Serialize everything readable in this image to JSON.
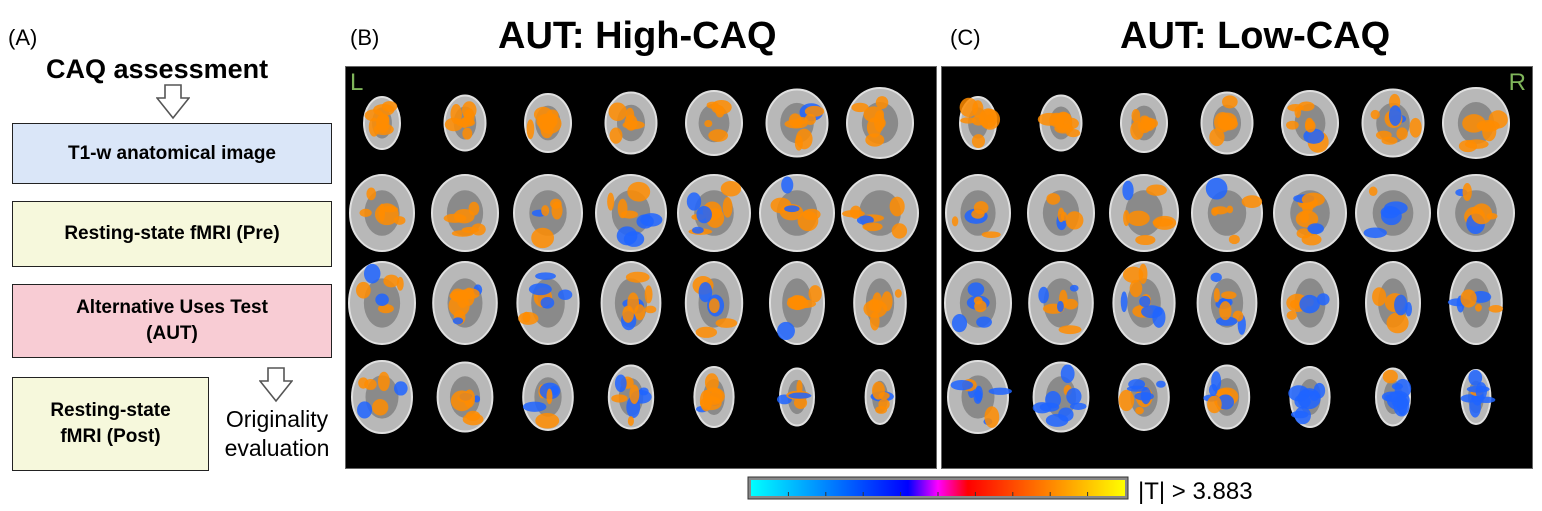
{
  "panel_a": {
    "letter": "(A)",
    "title": "CAQ assessment",
    "box1": "T1-w anatomical image",
    "box2": "Resting-state fMRI (Pre)",
    "box3_line1": "Alternative Uses Test",
    "box3_line2": "(AUT)",
    "box4_line1": "Resting-state",
    "box4_line2": "fMRI (Post)",
    "side_line1": "Originality",
    "side_line2": "evaluation"
  },
  "panel_b": {
    "letter": "(B)",
    "title": "AUT: High-CAQ",
    "corner_label": "L"
  },
  "panel_c": {
    "letter": "(C)",
    "title": "AUT: Low-CAQ",
    "corner_label": "R"
  },
  "colorbar": {
    "label": "|T| > 3.883",
    "colors": [
      "#00ffff",
      "#0000ff",
      "#ff00ff",
      "#ff0000",
      "#ffff00"
    ]
  },
  "colors": {
    "blue_box": "#dae6f8",
    "yellow_box": "#f6f8dc",
    "pink_box": "#f8ccd4",
    "activation_pos": "#ff8c00",
    "activation_neg": "#1e64ff"
  }
}
